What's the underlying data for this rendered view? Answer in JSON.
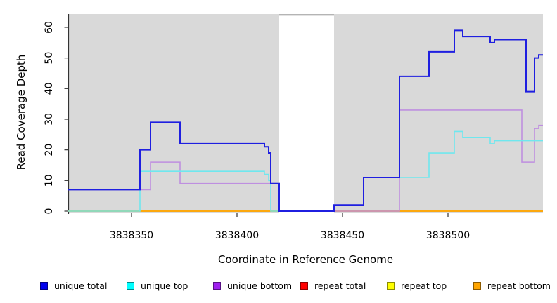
{
  "figure": {
    "background": "#ffffff",
    "panel_background": "#d9d9d9",
    "axis_color": "#333333"
  },
  "chart_data": {
    "type": "line",
    "subtype": "step",
    "title": "",
    "xlabel": "Coordinate in Reference Genome",
    "ylabel": "Read Coverage Depth",
    "xlim": [
      3838320,
      3838545
    ],
    "ylim": [
      0,
      64.3
    ],
    "grid": false,
    "legend_position": "bottom",
    "x_ticks": [
      {
        "value": 3838350,
        "label": "3838350"
      },
      {
        "value": 3838400,
        "label": "3838400"
      },
      {
        "value": 3838450,
        "label": "3838450"
      },
      {
        "value": 3838500,
        "label": "3838500"
      }
    ],
    "y_ticks": [
      {
        "value": 0,
        "label": "0"
      },
      {
        "value": 10,
        "label": "10"
      },
      {
        "value": 20,
        "label": "20"
      },
      {
        "value": 30,
        "label": "30"
      },
      {
        "value": 40,
        "label": "40"
      },
      {
        "value": 50,
        "label": "50"
      },
      {
        "value": 60,
        "label": "60"
      }
    ],
    "gap_region": {
      "from": 3838420,
      "to": 3838446,
      "fill": "#ffffff",
      "border_top_color": "#8f8f8f"
    },
    "draw_order": [
      "repeat total",
      "repeat top",
      "repeat bottom",
      "unique bottom",
      "unique top",
      "unique total"
    ],
    "series": [
      {
        "name": "unique total",
        "legend_color": "#0000ee",
        "line_color": "#1f1fe0",
        "line_width": 2,
        "points": [
          [
            3838320,
            7
          ],
          [
            3838354,
            20
          ],
          [
            3838359,
            29
          ],
          [
            3838373,
            22
          ],
          [
            3838413,
            21
          ],
          [
            3838415,
            19
          ],
          [
            3838416,
            9
          ],
          [
            3838420,
            0
          ],
          [
            3838446,
            2
          ],
          [
            3838460,
            11
          ],
          [
            3838477,
            44
          ],
          [
            3838491,
            52
          ],
          [
            3838503,
            59
          ],
          [
            3838507,
            57
          ],
          [
            3838520,
            55
          ],
          [
            3838522,
            56
          ],
          [
            3838537,
            39
          ],
          [
            3838541,
            50
          ],
          [
            3838543,
            51
          ]
        ]
      },
      {
        "name": "unique top",
        "legend_color": "#00ffff",
        "line_color": "#6fe7ee",
        "line_width": 1.6,
        "points": [
          [
            3838320,
            0
          ],
          [
            3838354,
            13
          ],
          [
            3838413,
            12
          ],
          [
            3838415,
            10
          ],
          [
            3838416,
            0
          ],
          [
            3838446,
            2
          ],
          [
            3838460,
            11
          ],
          [
            3838491,
            19
          ],
          [
            3838503,
            26
          ],
          [
            3838507,
            24
          ],
          [
            3838520,
            22
          ],
          [
            3838522,
            23
          ]
        ]
      },
      {
        "name": "unique bottom",
        "legend_color": "#a020f0",
        "line_color": "#be8fe0",
        "line_width": 1.6,
        "points": [
          [
            3838320,
            7
          ],
          [
            3838359,
            16
          ],
          [
            3838373,
            9
          ],
          [
            3838420,
            0
          ],
          [
            3838477,
            33
          ],
          [
            3838535,
            16
          ],
          [
            3838541,
            27
          ],
          [
            3838543,
            28
          ]
        ]
      },
      {
        "name": "repeat total",
        "legend_color": "#ff0000",
        "line_color": "#e05555",
        "line_width": 1.6,
        "points": [
          [
            3838320,
            0
          ]
        ]
      },
      {
        "name": "repeat top",
        "legend_color": "#ffff00",
        "line_color": "#f2e642",
        "line_width": 1.6,
        "points": [
          [
            3838320,
            0
          ]
        ]
      },
      {
        "name": "repeat bottom",
        "legend_color": "#ffa500",
        "line_color": "#ffa500",
        "line_width": 1.8,
        "points": [
          [
            3838320,
            0
          ]
        ]
      }
    ]
  }
}
